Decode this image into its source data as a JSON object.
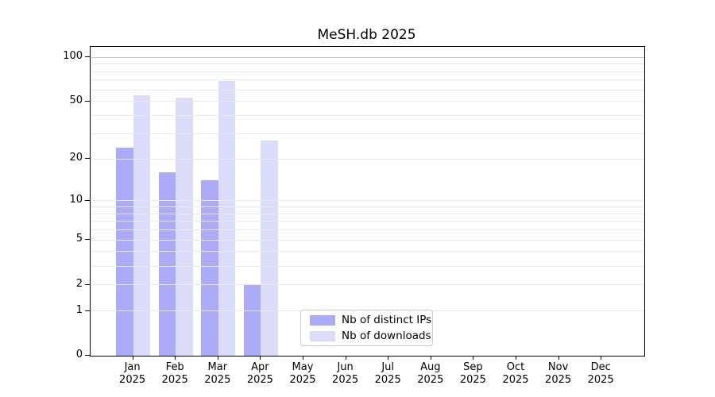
{
  "chart_data": {
    "type": "bar",
    "title": "MeSH.db 2025",
    "categories": [
      "Jan 2025",
      "Feb 2025",
      "Mar 2025",
      "Apr 2025",
      "May 2025",
      "Jun 2025",
      "Jul 2025",
      "Aug 2025",
      "Sep 2025",
      "Oct 2025",
      "Nov 2025",
      "Dec 2025"
    ],
    "x_tick_months": [
      "Jan",
      "Feb",
      "Mar",
      "Apr",
      "May",
      "Jun",
      "Jul",
      "Aug",
      "Sep",
      "Oct",
      "Nov",
      "Dec"
    ],
    "x_tick_year": "2025",
    "series": [
      {
        "name": "Nb of distinct IPs",
        "color": "#aaaaf9",
        "fill": "rgba(13,13,240,0.35)",
        "values": [
          24,
          16,
          14,
          2,
          0,
          0,
          0,
          0,
          0,
          0,
          0,
          0
        ]
      },
      {
        "name": "Nb of downloads",
        "color": "#dbdbfa",
        "fill": "rgba(15,15,222,0.15)",
        "values": [
          55,
          53,
          69,
          27,
          0,
          0,
          0,
          0,
          0,
          0,
          0,
          0
        ]
      }
    ],
    "yscale": "log1p",
    "ylim": [
      0,
      118
    ],
    "y_ticks": [
      0,
      1,
      2,
      5,
      10,
      20,
      50,
      100
    ],
    "y_gridlines": [
      1,
      2,
      3,
      4,
      5,
      6,
      7,
      8,
      9,
      10,
      20,
      30,
      40,
      50,
      60,
      70,
      80,
      90,
      100
    ],
    "y_gridline_major": 100,
    "grid_color": "#e9e9e9",
    "grid_major_color": "#c6c6c6",
    "legend_position": "lower center",
    "grid": "on"
  },
  "legend": {
    "items": [
      {
        "label": "Nb of distinct IPs",
        "swatch_color": "#aaaaf9"
      },
      {
        "label": "Nb of downloads",
        "swatch_color": "#dbdbfa"
      }
    ]
  }
}
